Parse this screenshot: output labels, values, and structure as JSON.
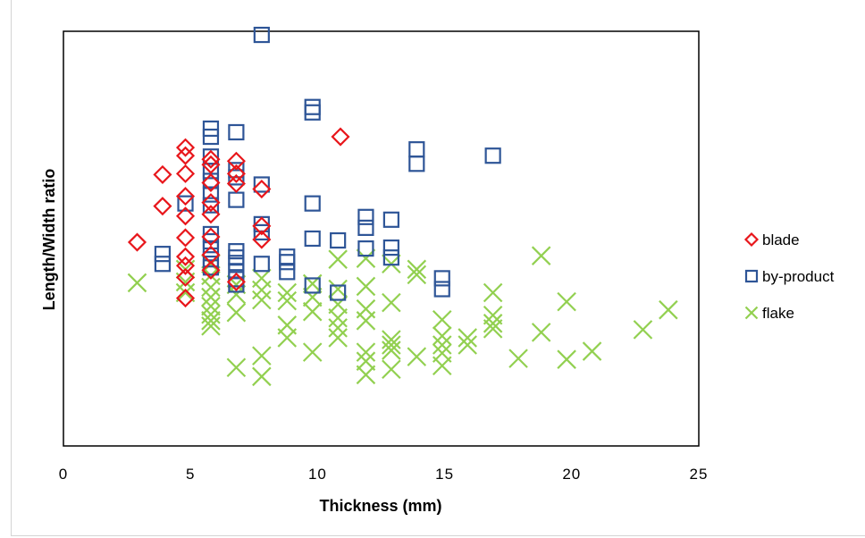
{
  "chart_data": {
    "type": "scatter",
    "title": "",
    "xlabel": "Thickness (mm)",
    "ylabel": "Length/Width ratio",
    "xlim": [
      0,
      25
    ],
    "ylim": [
      0,
      4.6
    ],
    "x_ticks": [
      "0",
      "5",
      "10",
      "15",
      "20",
      "25"
    ],
    "y_ticks_shown": false,
    "grid": false,
    "legend_position": "right",
    "series": [
      {
        "name": "blade",
        "marker": "diamond",
        "color": "#e8161b",
        "points": [
          [
            2.9,
            2.26
          ],
          [
            3.9,
            2.66
          ],
          [
            3.9,
            3.01
          ],
          [
            4.8,
            3.31
          ],
          [
            4.8,
            3.22
          ],
          [
            4.8,
            3.02
          ],
          [
            4.8,
            2.77
          ],
          [
            4.8,
            2.55
          ],
          [
            4.8,
            2.31
          ],
          [
            4.8,
            2.1
          ],
          [
            4.8,
            2.0
          ],
          [
            4.8,
            1.87
          ],
          [
            4.8,
            1.64
          ],
          [
            5.8,
            3.18
          ],
          [
            5.8,
            3.12
          ],
          [
            5.8,
            2.92
          ],
          [
            5.8,
            2.7
          ],
          [
            5.8,
            2.57
          ],
          [
            5.8,
            2.32
          ],
          [
            5.8,
            2.12
          ],
          [
            5.8,
            1.95
          ],
          [
            6.8,
            3.16
          ],
          [
            6.8,
            3.02
          ],
          [
            6.8,
            2.91
          ],
          [
            6.8,
            1.82
          ],
          [
            7.8,
            2.85
          ],
          [
            7.8,
            2.44
          ],
          [
            7.8,
            2.29
          ],
          [
            10.9,
            3.43
          ]
        ]
      },
      {
        "name": "by-product",
        "marker": "square",
        "color": "#2e5597",
        "points": [
          [
            3.9,
            2.13
          ],
          [
            3.9,
            2.02
          ],
          [
            4.8,
            2.69
          ],
          [
            5.8,
            3.52
          ],
          [
            5.8,
            3.43
          ],
          [
            5.8,
            3.21
          ],
          [
            5.8,
            3.05
          ],
          [
            5.8,
            2.94
          ],
          [
            5.8,
            2.79
          ],
          [
            5.8,
            2.67
          ],
          [
            5.8,
            2.35
          ],
          [
            5.8,
            2.27
          ],
          [
            5.8,
            2.18
          ],
          [
            5.8,
            2.07
          ],
          [
            5.8,
            1.98
          ],
          [
            6.8,
            3.48
          ],
          [
            6.8,
            3.06
          ],
          [
            6.8,
            2.98
          ],
          [
            6.8,
            2.73
          ],
          [
            6.8,
            2.16
          ],
          [
            6.8,
            2.09
          ],
          [
            6.8,
            2.03
          ],
          [
            6.8,
            1.94
          ],
          [
            6.8,
            1.85
          ],
          [
            6.8,
            1.79
          ],
          [
            7.8,
            4.56
          ],
          [
            7.8,
            2.9
          ],
          [
            7.8,
            2.46
          ],
          [
            7.8,
            2.37
          ],
          [
            7.8,
            2.02
          ],
          [
            8.8,
            2.1
          ],
          [
            8.8,
            2.04
          ],
          [
            8.8,
            1.93
          ],
          [
            9.8,
            3.76
          ],
          [
            9.8,
            3.7
          ],
          [
            9.8,
            2.69
          ],
          [
            9.8,
            2.3
          ],
          [
            9.8,
            1.78
          ],
          [
            10.8,
            2.28
          ],
          [
            10.8,
            1.7
          ],
          [
            11.9,
            2.54
          ],
          [
            11.9,
            2.42
          ],
          [
            11.9,
            2.19
          ],
          [
            12.9,
            2.51
          ],
          [
            12.9,
            2.2
          ],
          [
            12.9,
            2.09
          ],
          [
            13.9,
            3.29
          ],
          [
            13.9,
            3.13
          ],
          [
            14.9,
            1.86
          ],
          [
            14.9,
            1.74
          ],
          [
            16.9,
            3.22
          ]
        ]
      },
      {
        "name": "flake",
        "marker": "x",
        "color": "#92d050",
        "points": [
          [
            2.9,
            1.81
          ],
          [
            4.8,
            1.96
          ],
          [
            4.8,
            1.82
          ],
          [
            4.8,
            1.7
          ],
          [
            5.8,
            2.02
          ],
          [
            5.8,
            1.89
          ],
          [
            5.8,
            1.76
          ],
          [
            5.8,
            1.65
          ],
          [
            5.8,
            1.55
          ],
          [
            5.8,
            1.46
          ],
          [
            5.8,
            1.39
          ],
          [
            5.8,
            1.33
          ],
          [
            6.8,
            1.79
          ],
          [
            6.8,
            1.68
          ],
          [
            6.8,
            1.48
          ],
          [
            6.8,
            0.87
          ],
          [
            7.8,
            1.86
          ],
          [
            7.8,
            1.73
          ],
          [
            7.8,
            1.62
          ],
          [
            7.8,
            1.0
          ],
          [
            7.8,
            0.77
          ],
          [
            8.8,
            1.7
          ],
          [
            8.8,
            1.61
          ],
          [
            8.8,
            1.34
          ],
          [
            8.8,
            1.2
          ],
          [
            9.8,
            1.8
          ],
          [
            9.8,
            1.65
          ],
          [
            9.8,
            1.49
          ],
          [
            9.8,
            1.04
          ],
          [
            10.8,
            2.07
          ],
          [
            10.8,
            1.74
          ],
          [
            10.8,
            1.57
          ],
          [
            10.8,
            1.42
          ],
          [
            10.8,
            1.31
          ],
          [
            10.8,
            1.2
          ],
          [
            11.9,
            2.08
          ],
          [
            11.9,
            1.77
          ],
          [
            11.9,
            1.52
          ],
          [
            11.9,
            1.39
          ],
          [
            11.9,
            1.04
          ],
          [
            11.9,
            0.94
          ],
          [
            11.9,
            0.79
          ],
          [
            12.9,
            2.02
          ],
          [
            12.9,
            1.59
          ],
          [
            12.9,
            1.18
          ],
          [
            12.9,
            1.12
          ],
          [
            12.9,
            1.06
          ],
          [
            12.9,
            0.85
          ],
          [
            13.9,
            1.96
          ],
          [
            13.9,
            1.9
          ],
          [
            13.9,
            0.99
          ],
          [
            14.9,
            1.4
          ],
          [
            14.9,
            1.22
          ],
          [
            14.9,
            1.12
          ],
          [
            14.9,
            1.03
          ],
          [
            14.9,
            0.89
          ],
          [
            15.9,
            1.2
          ],
          [
            15.9,
            1.12
          ],
          [
            16.9,
            1.7
          ],
          [
            16.9,
            1.45
          ],
          [
            16.9,
            1.36
          ],
          [
            16.9,
            1.3
          ],
          [
            17.9,
            0.97
          ],
          [
            18.8,
            1.26
          ],
          [
            18.8,
            2.11
          ],
          [
            19.8,
            1.6
          ],
          [
            19.8,
            0.96
          ],
          [
            20.8,
            1.05
          ],
          [
            22.8,
            1.29
          ],
          [
            23.8,
            1.51
          ]
        ]
      }
    ]
  }
}
